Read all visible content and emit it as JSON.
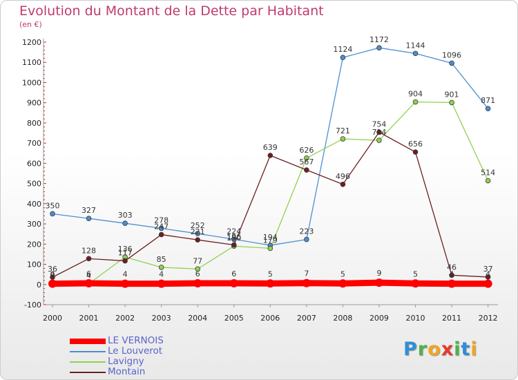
{
  "title": "Evolution du Montant de la Dette par Habitant",
  "subtitle": "(en €)",
  "brand": {
    "letters": [
      {
        "ch": "P",
        "color": "#2e8fd6"
      },
      {
        "ch": "r",
        "color": "#4fb24a"
      },
      {
        "ch": "o",
        "color": "#f2a51d"
      },
      {
        "ch": "x",
        "color": "#e63b2e"
      },
      {
        "ch": "i",
        "color": "#4fb24a"
      },
      {
        "ch": "t",
        "color": "#2e8fd6"
      },
      {
        "ch": "i",
        "color": "#f2a51d"
      }
    ]
  },
  "chart_data": {
    "type": "line",
    "x": [
      "2000",
      "2001",
      "2002",
      "2003",
      "2004",
      "2005",
      "2006",
      "2007",
      "2008",
      "2009",
      "2010",
      "2011",
      "2012"
    ],
    "yticks": [
      "-100",
      "0",
      "100",
      "200",
      "300",
      "400",
      "500",
      "600",
      "700",
      "800",
      "900",
      "1000",
      "1100",
      "1200"
    ],
    "ylim": [
      -100,
      1200
    ],
    "grid": false,
    "legend_position": "bottom-left",
    "series": [
      {
        "name": "LE VERNOIS",
        "color": "#ff0000",
        "values": [
          4,
          6,
          4,
          4,
          6,
          6,
          5,
          7,
          5,
          9,
          5,
          4,
          4
        ],
        "labels": [
          "4",
          "6",
          "4",
          "4",
          "6",
          "6",
          "5",
          "7",
          "5",
          "9",
          "5",
          "4",
          "4"
        ]
      },
      {
        "name": "Le Louverot",
        "color": "#4a8fd0",
        "values": [
          350,
          327,
          303,
          278,
          252,
          224,
          194,
          223,
          1124,
          1172,
          1144,
          1096,
          871
        ],
        "labels": [
          "350",
          "327",
          "303",
          "278",
          "252",
          "224",
          "194",
          "223",
          "1124",
          "1172",
          "1144",
          "1096",
          "871"
        ]
      },
      {
        "name": "Lavigny",
        "color": "#8fd24f",
        "values": [
          9,
          4,
          136,
          85,
          77,
          190,
          179,
          626,
          721,
          714,
          904,
          901,
          514
        ],
        "labels": [
          "9",
          "4",
          "136",
          "85",
          "77",
          "190",
          "179",
          "626",
          "721",
          "714",
          "904",
          "901",
          "514"
        ]
      },
      {
        "name": "Montain",
        "color": "#6b1f21",
        "values": [
          36,
          128,
          117,
          247,
          221,
          196,
          639,
          567,
          496,
          754,
          656,
          46,
          37
        ],
        "labels": [
          "36",
          "128",
          "117",
          "247",
          "221",
          "196",
          "639",
          "567",
          "496",
          "754",
          "656",
          "46",
          "37"
        ]
      }
    ]
  }
}
